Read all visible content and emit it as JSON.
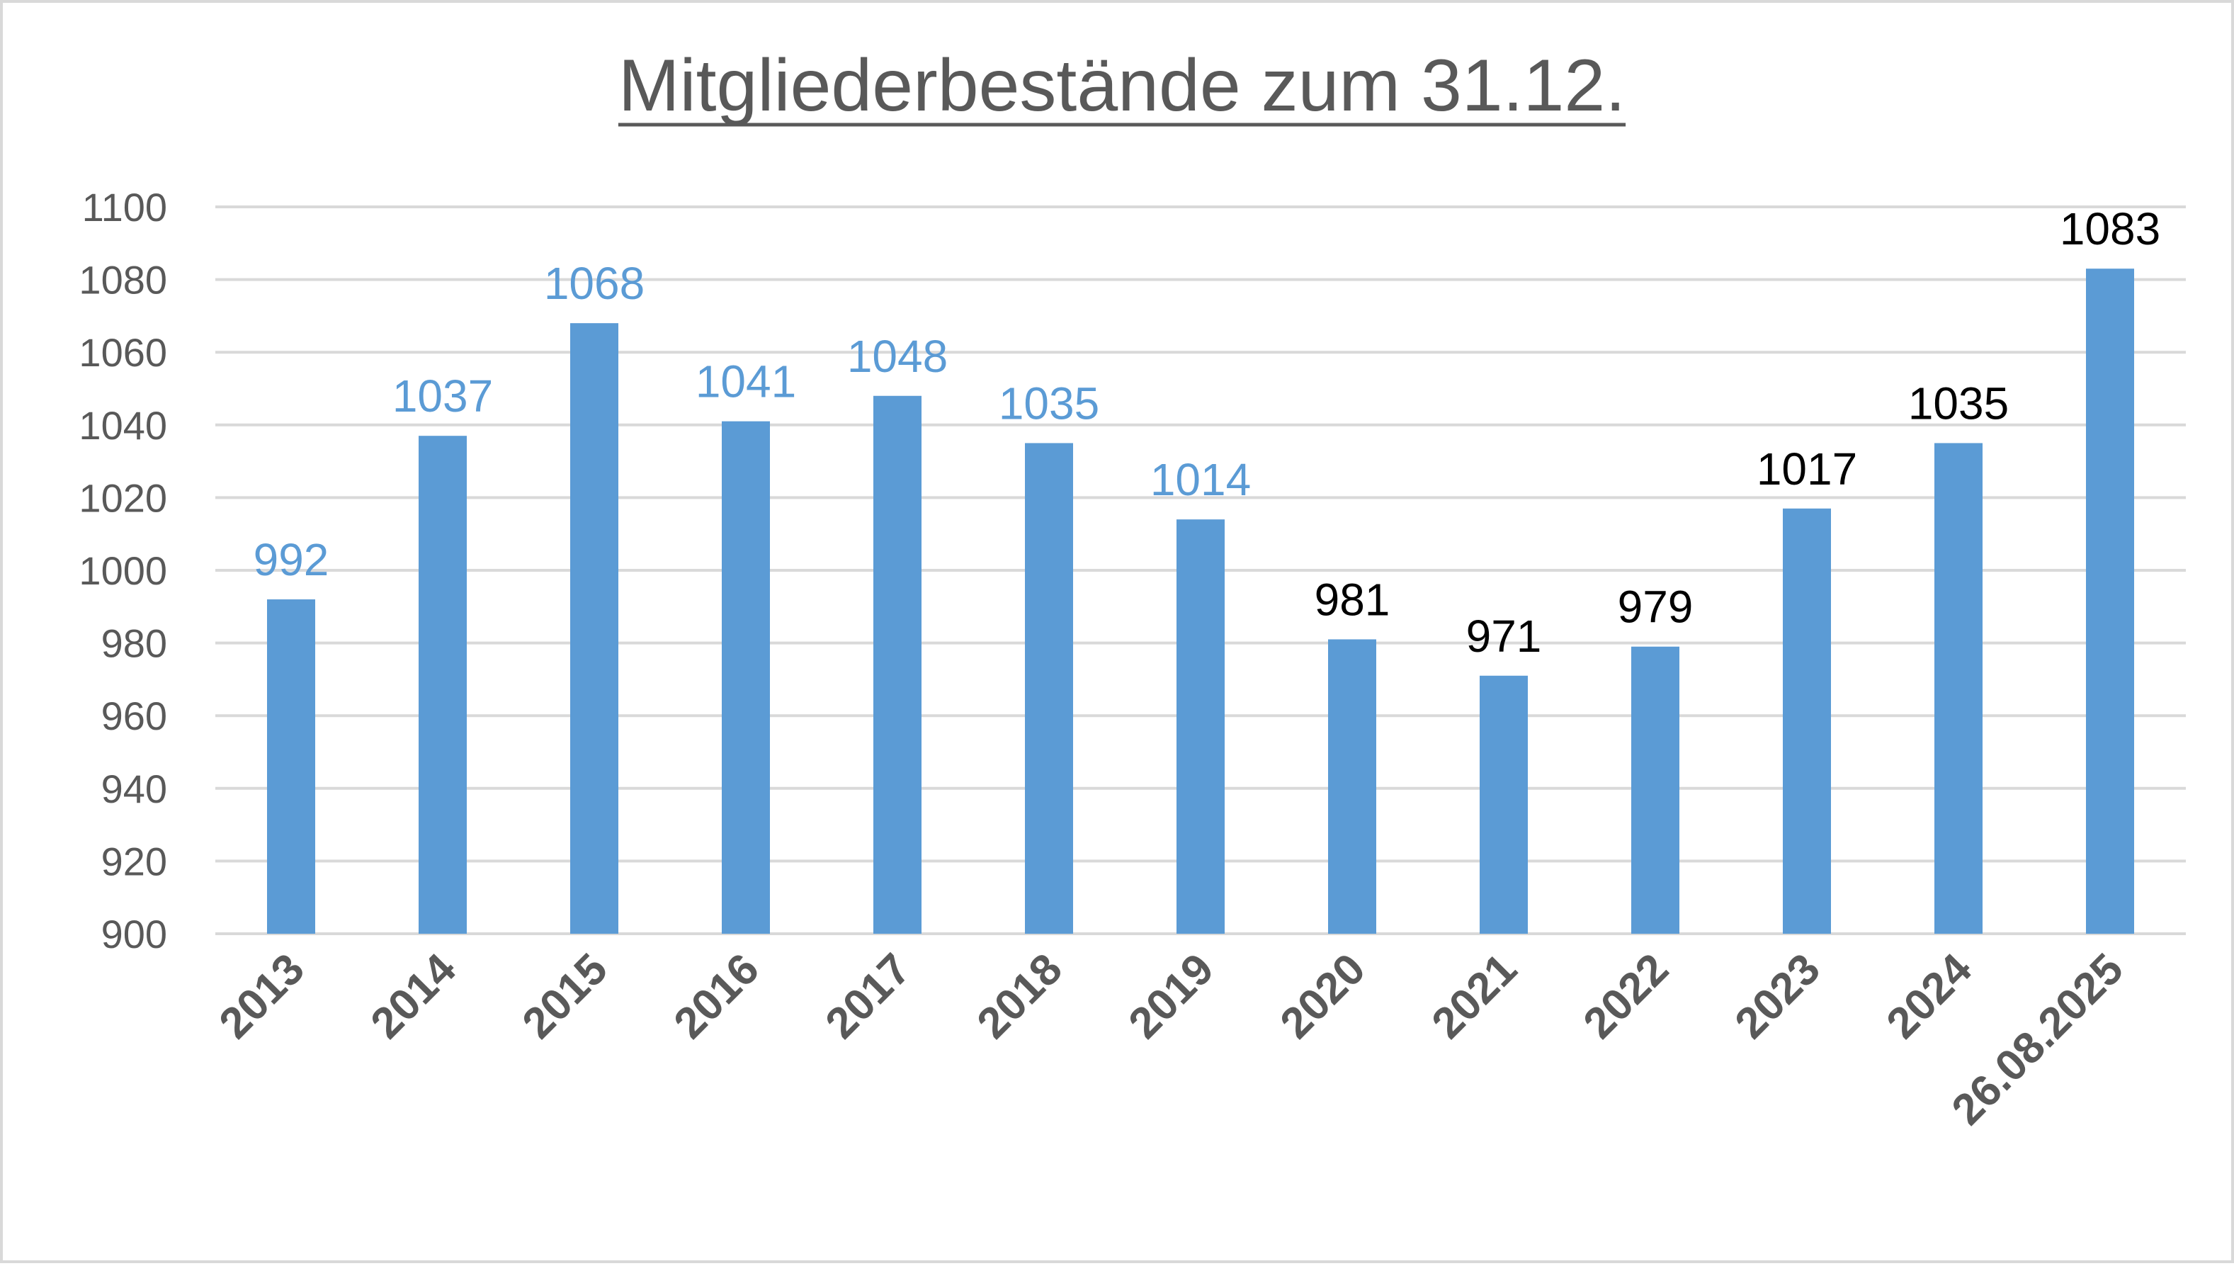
{
  "chart_data": {
    "type": "bar",
    "title": "Mitgliederbestände zum 31.12.",
    "xlabel": "",
    "ylabel": "",
    "categories": [
      "2013",
      "2014",
      "2015",
      "2016",
      "2017",
      "2018",
      "2019",
      "2020",
      "2021",
      "2022",
      "2023",
      "2024",
      "26.08.2025"
    ],
    "values": [
      992,
      1037,
      1068,
      1041,
      1048,
      1035,
      1014,
      981,
      971,
      979,
      1017,
      1035,
      1083
    ],
    "value_label_colors": [
      "#5b9bd5",
      "#5b9bd5",
      "#5b9bd5",
      "#5b9bd5",
      "#5b9bd5",
      "#5b9bd5",
      "#5b9bd5",
      "#000000",
      "#000000",
      "#000000",
      "#000000",
      "#000000",
      "#000000"
    ],
    "ylim": [
      900,
      1100
    ],
    "yticks": [
      900,
      920,
      940,
      960,
      980,
      1000,
      1020,
      1040,
      1060,
      1080,
      1100
    ],
    "grid": true,
    "legend": "none",
    "bar_color": "#5b9bd5",
    "grid_color": "#d9d9d9",
    "text_color": "#595959"
  }
}
